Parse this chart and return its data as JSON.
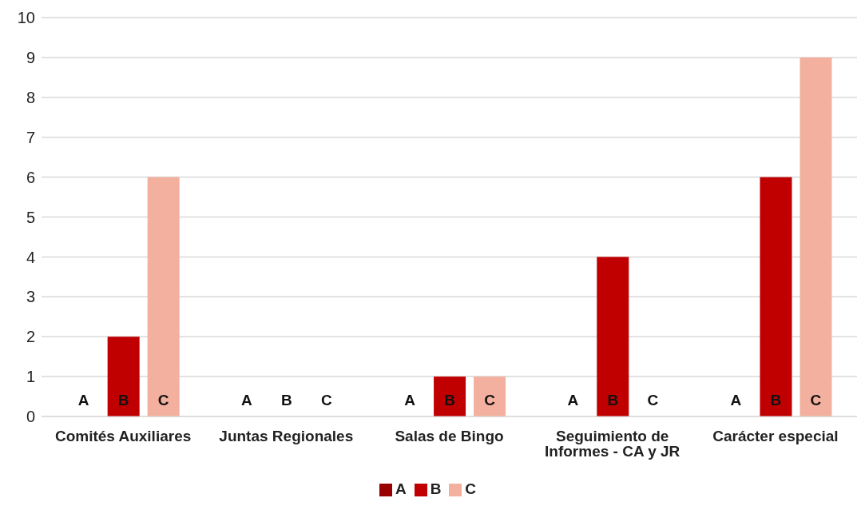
{
  "chart_data": {
    "type": "bar",
    "categories": [
      "Comités Auxiliares",
      "Juntas Regionales",
      "Salas de Bingo",
      "Seguimiento de Informes - CA y JR",
      "Carácter especial"
    ],
    "series": [
      {
        "name": "A",
        "color": "#990000",
        "values": [
          0,
          0,
          0,
          0,
          0
        ]
      },
      {
        "name": "B",
        "color": "#c00000",
        "values": [
          2,
          0,
          1,
          4,
          6
        ]
      },
      {
        "name": "C",
        "color": "#f4b09e",
        "values": [
          6,
          0,
          1,
          0,
          9
        ]
      }
    ],
    "ylim": [
      0,
      10
    ],
    "yticks": [
      0,
      1,
      2,
      3,
      4,
      5,
      6,
      7,
      8,
      9,
      10
    ],
    "grid": "y",
    "legend": "bottom"
  }
}
